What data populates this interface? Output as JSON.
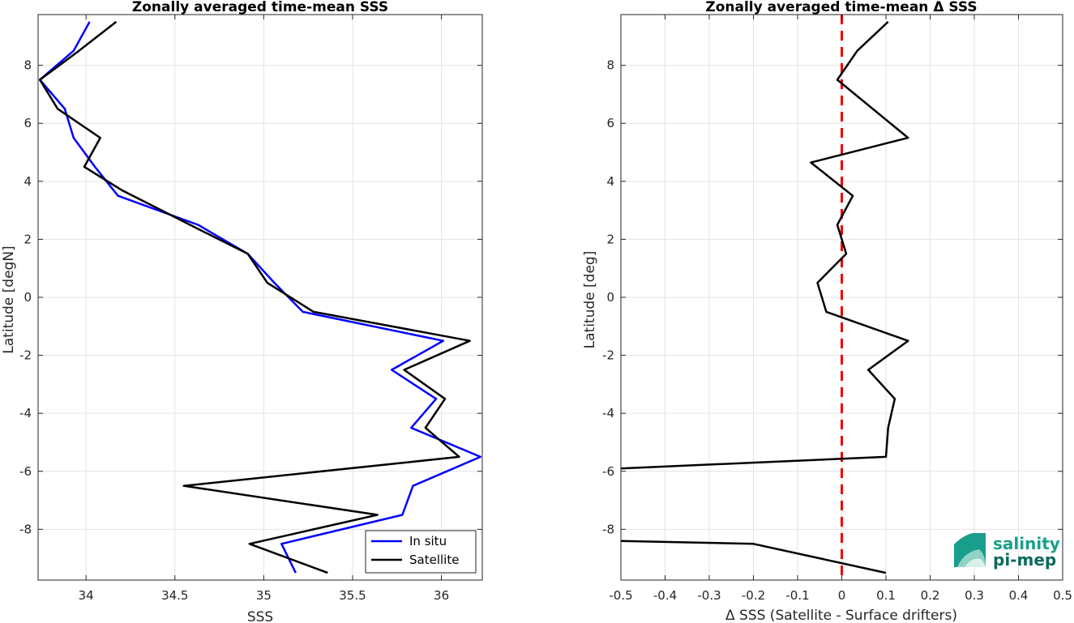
{
  "chart_data": [
    {
      "type": "line",
      "title": "Zonally averaged time-mean SSS",
      "xlabel": "SSS",
      "ylabel": "Latitude [degN]",
      "xlim": [
        33.73,
        36.23
      ],
      "ylim": [
        -9.75,
        9.75
      ],
      "xticks": [
        34,
        34.5,
        35,
        35.5,
        36
      ],
      "xtick_labels": [
        "34",
        "34.5",
        "35",
        "35.5",
        "36"
      ],
      "yticks": [
        -8,
        -6,
        -4,
        -2,
        0,
        2,
        4,
        6,
        8
      ],
      "ytick_labels": [
        "-8",
        "-6",
        "-4",
        "-2",
        "0",
        "2",
        "4",
        "6",
        "8"
      ],
      "grid": true,
      "legend_position": "bottom-right",
      "series": [
        {
          "name": "In situ",
          "color": "#0000ff",
          "points": [
            [
              34.02,
              9.5
            ],
            [
              33.93,
              8.5
            ],
            [
              33.74,
              7.5
            ],
            [
              33.88,
              6.5
            ],
            [
              33.93,
              5.5
            ],
            [
              34.05,
              4.5
            ],
            [
              34.18,
              3.5
            ],
            [
              34.63,
              2.5
            ],
            [
              34.91,
              1.5
            ],
            [
              35.06,
              0.5
            ],
            [
              35.22,
              -0.5
            ],
            [
              36.01,
              -1.5
            ],
            [
              35.72,
              -2.5
            ],
            [
              35.97,
              -3.5
            ],
            [
              35.83,
              -4.5
            ],
            [
              36.22,
              -5.5
            ],
            [
              35.84,
              -6.5
            ],
            [
              35.78,
              -7.5
            ],
            [
              35.1,
              -8.5
            ],
            [
              35.18,
              -9.5
            ]
          ]
        },
        {
          "name": "Satellite",
          "color": "#000000",
          "points": [
            [
              34.17,
              9.5
            ],
            [
              33.96,
              8.5
            ],
            [
              33.74,
              7.5
            ],
            [
              33.84,
              6.5
            ],
            [
              34.08,
              5.5
            ],
            [
              33.99,
              4.5
            ],
            [
              34.2,
              3.7
            ],
            [
              34.65,
              2.3
            ],
            [
              34.91,
              1.5
            ],
            [
              35.02,
              0.5
            ],
            [
              35.28,
              -0.5
            ],
            [
              36.16,
              -1.5
            ],
            [
              35.79,
              -2.5
            ],
            [
              36.02,
              -3.5
            ],
            [
              35.91,
              -4.5
            ],
            [
              36.1,
              -5.5
            ],
            [
              34.55,
              -6.5
            ],
            [
              35.64,
              -7.5
            ],
            [
              34.92,
              -8.5
            ],
            [
              35.36,
              -9.5
            ]
          ]
        }
      ]
    },
    {
      "type": "line",
      "title": "Zonally averaged time-mean Δ SSS",
      "xlabel": "Δ SSS (Satellite - Surface drifters)",
      "ylabel": "Latitude [deg]",
      "xlim": [
        -0.5,
        0.5
      ],
      "ylim": [
        -9.75,
        9.75
      ],
      "xticks": [
        -0.5,
        -0.4,
        -0.3,
        -0.2,
        -0.1,
        0,
        0.1,
        0.2,
        0.3,
        0.4,
        0.5
      ],
      "xtick_labels": [
        "-0.5",
        "-0.4",
        "-0.3",
        "-0.2",
        "-0.1",
        "0",
        "0.1",
        "0.2",
        "0.3",
        "0.4",
        "0.5"
      ],
      "yticks": [
        -8,
        -6,
        -4,
        -2,
        0,
        2,
        4,
        6,
        8
      ],
      "ytick_labels": [
        "-8",
        "-6",
        "-4",
        "-2",
        "0",
        "2",
        "4",
        "6",
        "8"
      ],
      "grid": true,
      "reference_line": {
        "x": 0,
        "color": "#ee0000",
        "style": "dashed"
      },
      "series": [
        {
          "color": "#000000",
          "segments": [
            [
              [
                0.105,
                9.5
              ],
              [
                0.035,
                8.5
              ],
              [
                -0.01,
                7.5
              ],
              [
                0.15,
                5.5
              ],
              [
                -0.07,
                4.65
              ],
              [
                0.025,
                3.5
              ],
              [
                -0.01,
                2.5
              ],
              [
                0.01,
                1.5
              ],
              [
                -0.055,
                0.5
              ],
              [
                -0.035,
                -0.5
              ],
              [
                0.15,
                -1.5
              ],
              [
                0.06,
                -2.5
              ],
              [
                0.12,
                -3.5
              ],
              [
                0.105,
                -4.5
              ],
              [
                0.1,
                -5.5
              ],
              [
                -0.5,
                -5.9
              ]
            ],
            [
              [
                -0.5,
                -8.4
              ],
              [
                -0.2,
                -8.5
              ],
              [
                0.1,
                -9.5
              ]
            ]
          ]
        }
      ]
    }
  ],
  "logo": {
    "line1": "salinity",
    "line2": "pi-mep",
    "colors": [
      "#1a9e8c",
      "#8ed3c3",
      "#0b6b5e"
    ]
  }
}
